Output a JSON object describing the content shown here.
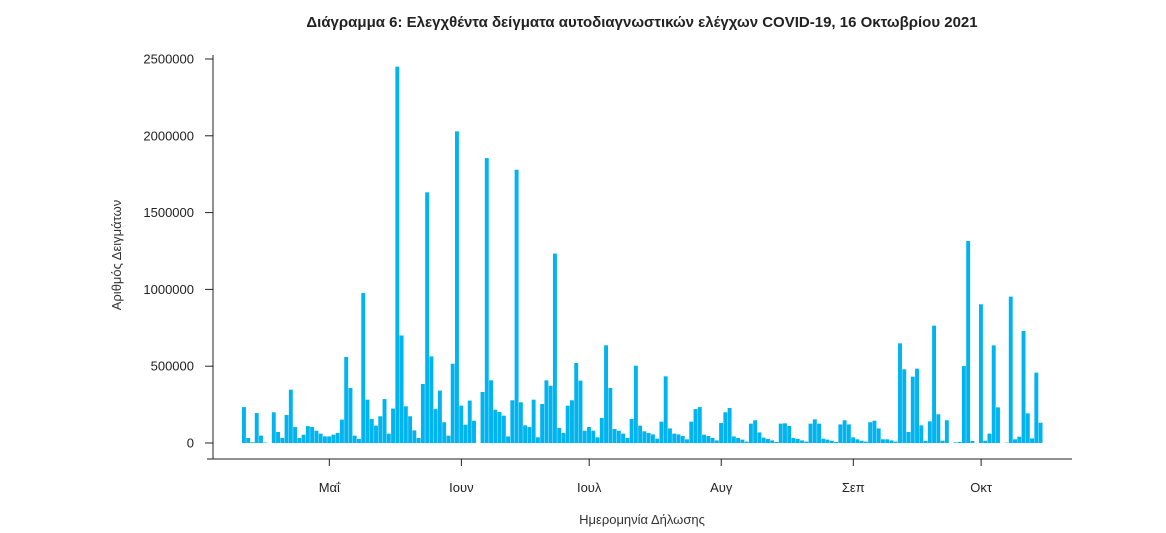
{
  "chart_data": {
    "type": "bar",
    "title": "Διάγραμμα 6: Ελεγχθέντα δείγματα αυτοδιαγνωστικών ελέγχων COVID-19, 16 Οκτωβρίου 2021",
    "xlabel": "Ημερομηνία Δήλωσης",
    "ylabel": "Αριθμός Δειγμάτων",
    "ylim": [
      0,
      2500000
    ],
    "y_ticks": [
      "0",
      "500000",
      "1000000",
      "1500000",
      "2000000",
      "2500000"
    ],
    "x_ticks": [
      {
        "label": "Μαΐ",
        "day": 20
      },
      {
        "label": "Ιουν",
        "day": 51
      },
      {
        "label": "Ιουλ",
        "day": 81
      },
      {
        "label": "Αυγ",
        "day": 112
      },
      {
        "label": "Σεπ",
        "day": 143
      },
      {
        "label": "Οκτ",
        "day": 173
      }
    ],
    "start_date": "2021-04-11",
    "bar_color": "#00b4ef",
    "grid": false,
    "values": [
      234000,
      33000,
      5000,
      195000,
      48000,
      3000,
      0,
      200000,
      72000,
      33000,
      182000,
      347000,
      104000,
      33000,
      54000,
      110000,
      104000,
      80000,
      61000,
      43000,
      43000,
      54000,
      65000,
      152000,
      560000,
      358000,
      48000,
      26000,
      977000,
      282000,
      156000,
      113000,
      174000,
      286000,
      61000,
      224000,
      2450000,
      700000,
      239000,
      174000,
      82000,
      33000,
      384000,
      1632000,
      564000,
      221000,
      341000,
      135000,
      48000,
      516000,
      2029000,
      243000,
      119000,
      276000,
      145000,
      0,
      332000,
      1855000,
      408000,
      217000,
      202000,
      178000,
      43000,
      278000,
      1779000,
      265000,
      115000,
      104000,
      282000,
      37000,
      254000,
      408000,
      373000,
      1233000,
      98000,
      65000,
      243000,
      278000,
      521000,
      406000,
      80000,
      104000,
      80000,
      37000,
      163000,
      636000,
      358000,
      91000,
      80000,
      61000,
      33000,
      156000,
      503000,
      113000,
      76000,
      65000,
      56000,
      28000,
      139000,
      434000,
      95000,
      61000,
      56000,
      46000,
      24000,
      139000,
      221000,
      234000,
      54000,
      46000,
      33000,
      17000,
      130000,
      200000,
      228000,
      43000,
      33000,
      22000,
      9000,
      126000,
      148000,
      69000,
      35000,
      26000,
      17000,
      7000,
      126000,
      128000,
      111000,
      33000,
      26000,
      17000,
      9000,
      126000,
      154000,
      126000,
      28000,
      22000,
      15000,
      7000,
      121000,
      148000,
      121000,
      37000,
      24000,
      15000,
      9000,
      135000,
      145000,
      95000,
      24000,
      24000,
      17000,
      9000,
      649000,
      480000,
      72000,
      432000,
      484000,
      115000,
      13000,
      141000,
      764000,
      187000,
      15000,
      148000,
      0,
      4000,
      7000,
      501000,
      1315000,
      13000,
      0,
      903000,
      15000,
      61000,
      636000,
      232000,
      0,
      2000,
      953000,
      24000,
      41000,
      729000,
      193000,
      30000,
      458000,
      132000
    ]
  }
}
